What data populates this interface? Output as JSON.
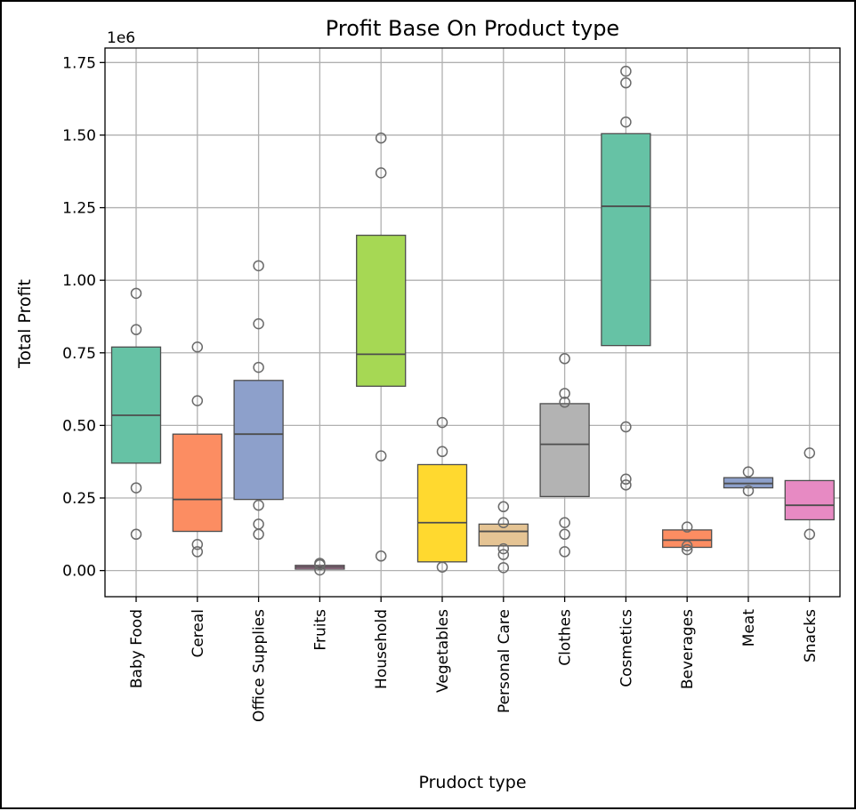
{
  "chart_data": {
    "type": "boxplot",
    "title": "Profit Base On Product type",
    "xlabel": "Prudoct type",
    "ylabel": "Total Profit",
    "offset_text": "1e6",
    "ylim": [
      -0.09,
      1.8
    ],
    "yticks": [
      "0.00",
      "0.25",
      "0.50",
      "0.75",
      "1.00",
      "1.25",
      "1.50",
      "1.75"
    ],
    "ytick_values": [
      0.0,
      0.25,
      0.5,
      0.75,
      1.0,
      1.25,
      1.5,
      1.75
    ],
    "grid": true,
    "categories": [
      "Baby Food",
      "Cereal",
      "Office Supplies",
      "Fruits",
      "Household",
      "Vegetables",
      "Personal Care",
      "Clothes",
      "Cosmetics",
      "Beverages",
      "Meat",
      "Snacks"
    ],
    "boxes": [
      {
        "category": "Baby Food",
        "q1": 0.37,
        "median": 0.535,
        "q3": 0.77,
        "fliers": [
          0.955,
          0.83,
          0.285,
          0.125
        ],
        "color": "#66c2a5"
      },
      {
        "category": "Cereal",
        "q1": 0.135,
        "median": 0.245,
        "q3": 0.47,
        "fliers": [
          0.77,
          0.585,
          0.09,
          0.065
        ],
        "color": "#fc8d62"
      },
      {
        "category": "Office Supplies",
        "q1": 0.245,
        "median": 0.47,
        "q3": 0.655,
        "fliers": [
          1.05,
          0.85,
          0.7,
          0.225,
          0.16,
          0.125
        ],
        "color": "#8da0cb"
      },
      {
        "category": "Fruits",
        "q1": 0.005,
        "median": 0.012,
        "q3": 0.018,
        "fliers": [
          0.025,
          0.02,
          0.002
        ],
        "color": "#e78ac3"
      },
      {
        "category": "Household",
        "q1": 0.635,
        "median": 0.745,
        "q3": 1.155,
        "fliers": [
          1.49,
          1.37,
          0.395,
          0.05
        ],
        "color": "#a6d854"
      },
      {
        "category": "Vegetables",
        "q1": 0.03,
        "median": 0.165,
        "q3": 0.365,
        "fliers": [
          0.51,
          0.41,
          0.012
        ],
        "color": "#ffd92f"
      },
      {
        "category": "Personal Care",
        "q1": 0.085,
        "median": 0.135,
        "q3": 0.16,
        "fliers": [
          0.22,
          0.165,
          0.075,
          0.055,
          0.01
        ],
        "color": "#e5c494"
      },
      {
        "category": "Clothes",
        "q1": 0.255,
        "median": 0.435,
        "q3": 0.575,
        "fliers": [
          0.73,
          0.61,
          0.58,
          0.165,
          0.125,
          0.065
        ],
        "color": "#b3b3b3"
      },
      {
        "category": "Cosmetics",
        "q1": 0.775,
        "median": 1.255,
        "q3": 1.505,
        "fliers": [
          1.72,
          1.68,
          1.545,
          0.495,
          0.315,
          0.295
        ],
        "color": "#66c2a5"
      },
      {
        "category": "Beverages",
        "q1": 0.08,
        "median": 0.105,
        "q3": 0.14,
        "fliers": [
          0.15,
          0.085,
          0.072
        ],
        "color": "#fc8d62"
      },
      {
        "category": "Meat",
        "q1": 0.285,
        "median": 0.3,
        "q3": 0.32,
        "fliers": [
          0.34,
          0.275
        ],
        "color": "#8da0cb"
      },
      {
        "category": "Snacks",
        "q1": 0.175,
        "median": 0.225,
        "q3": 0.31,
        "fliers": [
          0.405,
          0.125
        ],
        "color": "#e78ac3"
      }
    ]
  }
}
